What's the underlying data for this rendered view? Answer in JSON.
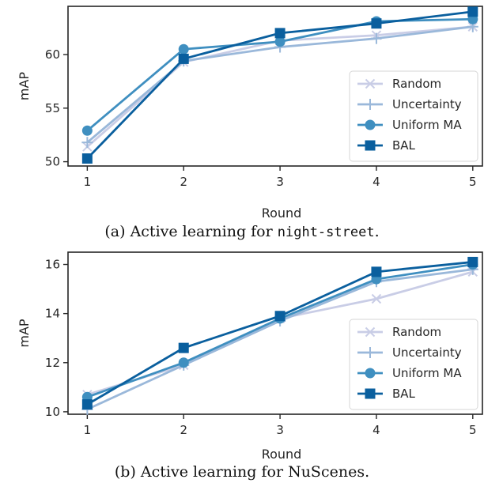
{
  "captions": [
    {
      "prefix": "(a) Active learning for ",
      "code": "night-street",
      "suffix": "."
    },
    {
      "prefix": "(b) Active learning for NuScenes.",
      "code": "",
      "suffix": ""
    }
  ],
  "chart_data": [
    {
      "type": "line",
      "title": "",
      "xlabel": "Round",
      "ylabel": "mAP",
      "x": [
        1,
        2,
        3,
        4,
        5
      ],
      "xlim": [
        0.8,
        5.1
      ],
      "ylim": [
        49.6,
        64.5
      ],
      "yticks": [
        50,
        55,
        60
      ],
      "xticks": [
        1,
        2,
        3,
        4,
        5
      ],
      "grid": false,
      "legend": "lower-right",
      "series": [
        {
          "name": "Random",
          "color": "#c9cde6",
          "marker": "x",
          "values": [
            51.4,
            59.3,
            61.3,
            61.8,
            62.6
          ]
        },
        {
          "name": "Uncertainty",
          "color": "#9ab8da",
          "marker": "plus",
          "values": [
            51.8,
            59.4,
            60.7,
            61.5,
            62.6
          ]
        },
        {
          "name": "Uniform MA",
          "color": "#3f8fc0",
          "marker": "circle",
          "values": [
            52.9,
            60.5,
            61.2,
            63.1,
            63.3
          ]
        },
        {
          "name": "BAL",
          "color": "#0a5f9e",
          "marker": "square",
          "values": [
            50.3,
            59.6,
            62.0,
            62.9,
            64.0
          ]
        }
      ]
    },
    {
      "type": "line",
      "title": "",
      "xlabel": "Round",
      "ylabel": "mAP",
      "x": [
        1,
        2,
        3,
        4,
        5
      ],
      "xlim": [
        0.8,
        5.1
      ],
      "ylim": [
        9.9,
        16.5
      ],
      "yticks": [
        10,
        12,
        14,
        16
      ],
      "xticks": [
        1,
        2,
        3,
        4,
        5
      ],
      "grid": false,
      "legend": "lower-right",
      "series": [
        {
          "name": "Random",
          "color": "#c9cde6",
          "marker": "x",
          "values": [
            10.7,
            11.9,
            13.8,
            14.6,
            15.7
          ]
        },
        {
          "name": "Uncertainty",
          "color": "#9ab8da",
          "marker": "plus",
          "values": [
            10.1,
            11.9,
            13.7,
            15.3,
            15.8
          ]
        },
        {
          "name": "Uniform MA",
          "color": "#3f8fc0",
          "marker": "circle",
          "values": [
            10.6,
            12.0,
            13.8,
            15.4,
            16.0
          ]
        },
        {
          "name": "BAL",
          "color": "#0a5f9e",
          "marker": "square",
          "values": [
            10.3,
            12.6,
            13.9,
            15.7,
            16.1
          ]
        }
      ]
    }
  ]
}
